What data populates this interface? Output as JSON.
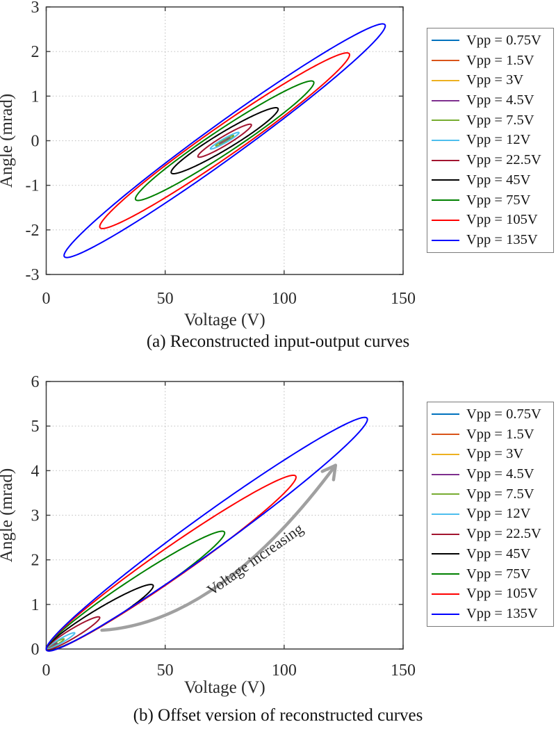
{
  "figure": {
    "background": "#ffffff",
    "axis_color": "#3c3c3c",
    "grid_color": "#c9c9c9",
    "tick_text_color": "#2b2b2b"
  },
  "chart_data": [
    {
      "id": "a",
      "type": "line",
      "caption": "(a) Reconstructed input-output curves",
      "xlabel": "Voltage (V)",
      "ylabel": "Angle (mrad)",
      "xlim": [
        0,
        150
      ],
      "ylim": [
        -3,
        3
      ],
      "xticks": [
        0,
        50,
        100,
        150
      ],
      "yticks": [
        3,
        2,
        1,
        0,
        -1,
        -2,
        -3
      ],
      "grid": "dotted",
      "legend_position": "outside-right",
      "curve_model": "centered_loop",
      "center_voltage": 75,
      "series": [
        {
          "name": "Vpp = 0.75V",
          "color": "#0072BD",
          "vpp": 0.75,
          "amplitude": 0.012,
          "phase": 0.3
        },
        {
          "name": "Vpp = 1.5V",
          "color": "#D95319",
          "vpp": 1.5,
          "amplitude": 0.024,
          "phase": 0.3
        },
        {
          "name": "Vpp = 3V",
          "color": "#EDB120",
          "vpp": 3,
          "amplitude": 0.047,
          "phase": 0.3
        },
        {
          "name": "Vpp = 4.5V",
          "color": "#7E2F8E",
          "vpp": 4.5,
          "amplitude": 0.071,
          "phase": 0.3
        },
        {
          "name": "Vpp = 7.5V",
          "color": "#77AC30",
          "vpp": 7.5,
          "amplitude": 0.117,
          "phase": 0.3
        },
        {
          "name": "Vpp = 12V",
          "color": "#4DBEEE",
          "vpp": 12,
          "amplitude": 0.187,
          "phase": 0.3
        },
        {
          "name": "Vpp = 22.5V",
          "color": "#A2142F",
          "vpp": 22.5,
          "amplitude": 0.37,
          "phase": 0.32
        },
        {
          "name": "Vpp = 45V",
          "color": "#000000",
          "vpp": 45,
          "amplitude": 0.74,
          "phase": 0.3
        },
        {
          "name": "Vpp = 75V",
          "color": "#008000",
          "vpp": 75,
          "amplitude": 1.34,
          "phase": 0.24
        },
        {
          "name": "Vpp = 105V",
          "color": "#FF0000",
          "vpp": 105,
          "amplitude": 1.97,
          "phase": 0.21
        },
        {
          "name": "Vpp = 135V",
          "color": "#0000FF",
          "vpp": 135,
          "amplitude": 2.62,
          "phase": 0.185
        }
      ]
    },
    {
      "id": "b",
      "type": "line",
      "caption": "(b) Offset version of reconstructed curves",
      "xlabel": "Voltage (V)",
      "ylabel": "Angle (mrad)",
      "xlim": [
        0,
        150
      ],
      "ylim": [
        0,
        6
      ],
      "xticks": [
        0,
        50,
        100,
        150
      ],
      "yticks": [
        6,
        5,
        4,
        3,
        2,
        1,
        0
      ],
      "grid": "dotted",
      "legend_position": "outside-right",
      "curve_model": "offset_loop",
      "annotation": {
        "label": "Voltage increasing",
        "color": "#a0a0a0",
        "rotation_deg": -35,
        "text_pos": {
          "v": 89,
          "angle": 1.92
        },
        "arrow": {
          "from": {
            "v": 23.4,
            "angle": 0.42
          },
          "mid": {
            "v": 72.5,
            "angle": 1.43
          },
          "to": {
            "v": 121.6,
            "angle": 4.12
          }
        }
      },
      "series": [
        {
          "name": "Vpp = 0.75V",
          "color": "#0072BD",
          "vpp": 0.75,
          "amplitude": 0.012,
          "phase": 0.3
        },
        {
          "name": "Vpp = 1.5V",
          "color": "#D95319",
          "vpp": 1.5,
          "amplitude": 0.024,
          "phase": 0.3
        },
        {
          "name": "Vpp = 3V",
          "color": "#EDB120",
          "vpp": 3,
          "amplitude": 0.047,
          "phase": 0.3
        },
        {
          "name": "Vpp = 4.5V",
          "color": "#7E2F8E",
          "vpp": 4.5,
          "amplitude": 0.071,
          "phase": 0.3
        },
        {
          "name": "Vpp = 7.5V",
          "color": "#77AC30",
          "vpp": 7.5,
          "amplitude": 0.117,
          "phase": 0.3
        },
        {
          "name": "Vpp = 12V",
          "color": "#4DBEEE",
          "vpp": 12,
          "amplitude": 0.187,
          "phase": 0.3
        },
        {
          "name": "Vpp = 22.5V",
          "color": "#A2142F",
          "vpp": 22.5,
          "amplitude": 0.37,
          "phase": 0.32
        },
        {
          "name": "Vpp = 45V",
          "color": "#000000",
          "vpp": 45,
          "amplitude": 0.74,
          "phase": 0.3
        },
        {
          "name": "Vpp = 75V",
          "color": "#008000",
          "vpp": 75,
          "amplitude": 1.34,
          "phase": 0.24
        },
        {
          "name": "Vpp = 105V",
          "color": "#FF0000",
          "vpp": 105,
          "amplitude": 1.97,
          "phase": 0.21
        },
        {
          "name": "Vpp = 135V",
          "color": "#0000FF",
          "vpp": 135,
          "amplitude": 2.62,
          "phase": 0.185
        }
      ]
    }
  ]
}
